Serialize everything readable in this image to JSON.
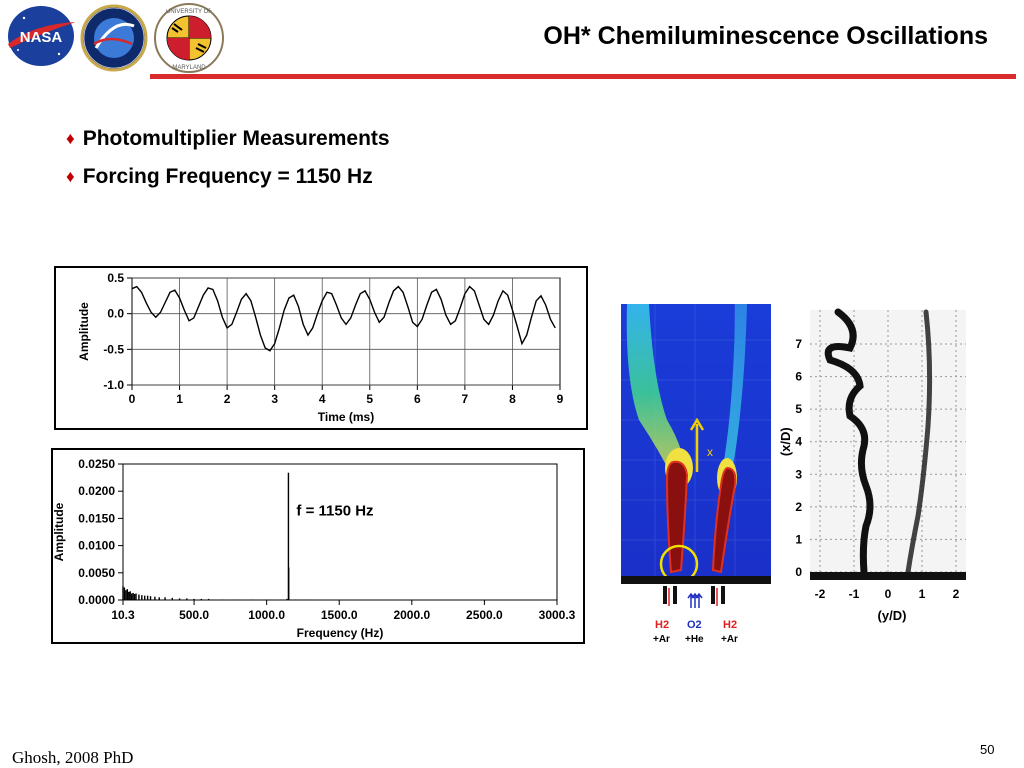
{
  "slide": {
    "title": "OH* Chemiluminescence Oscillations",
    "bullets": [
      "Photomultiplier Measurements",
      "Forcing Frequency = 1150 Hz"
    ],
    "footer": "Ghosh, 2008 PhD",
    "page_number": "50"
  },
  "logos": {
    "nasa": "NASA",
    "umd_top": "UNIVERSITY OF",
    "umd_bottom": "MARYLAND"
  },
  "chart_data": [
    {
      "type": "line",
      "title": "",
      "xlabel": "Time (ms)",
      "ylabel": "Amplitude",
      "xlim": [
        0,
        9
      ],
      "ylim": [
        -1.0,
        0.5
      ],
      "xticks": [
        "0",
        "1",
        "2",
        "3",
        "4",
        "5",
        "6",
        "7",
        "8",
        "9"
      ],
      "yticks": [
        "0.5",
        "0.0",
        "-0.5",
        "-1.0"
      ],
      "grid": true,
      "x": [
        0,
        0.1,
        0.2,
        0.3,
        0.4,
        0.5,
        0.6,
        0.7,
        0.8,
        0.9,
        1.0,
        1.1,
        1.2,
        1.3,
        1.4,
        1.5,
        1.6,
        1.7,
        1.8,
        1.9,
        2.0,
        2.1,
        2.2,
        2.3,
        2.4,
        2.5,
        2.6,
        2.7,
        2.8,
        2.9,
        3.0,
        3.1,
        3.2,
        3.3,
        3.4,
        3.5,
        3.6,
        3.7,
        3.8,
        3.9,
        4.0,
        4.1,
        4.2,
        4.3,
        4.4,
        4.5,
        4.6,
        4.7,
        4.8,
        4.9,
        5.0,
        5.1,
        5.2,
        5.3,
        5.4,
        5.5,
        5.6,
        5.7,
        5.8,
        5.9,
        6.0,
        6.1,
        6.2,
        6.3,
        6.4,
        6.5,
        6.6,
        6.7,
        6.8,
        6.9,
        7.0,
        7.1,
        7.2,
        7.3,
        7.4,
        7.5,
        7.6,
        7.7,
        7.8,
        7.9,
        8.0,
        8.1,
        8.2,
        8.3,
        8.4,
        8.5,
        8.6,
        8.7,
        8.8,
        8.9
      ],
      "series": [
        {
          "values": [
            0.35,
            0.38,
            0.3,
            0.15,
            0.02,
            -0.05,
            0.02,
            0.16,
            0.3,
            0.33,
            0.22,
            0.05,
            -0.1,
            -0.06,
            0.1,
            0.26,
            0.36,
            0.34,
            0.18,
            -0.05,
            -0.2,
            -0.15,
            0.02,
            0.2,
            0.28,
            0.18,
            -0.05,
            -0.3,
            -0.48,
            -0.52,
            -0.42,
            -0.2,
            0.05,
            0.22,
            0.26,
            0.1,
            -0.15,
            -0.3,
            -0.2,
            0.0,
            0.18,
            0.3,
            0.28,
            0.12,
            -0.06,
            -0.15,
            -0.06,
            0.12,
            0.28,
            0.32,
            0.2,
            0.02,
            -0.12,
            -0.05,
            0.15,
            0.32,
            0.38,
            0.3,
            0.1,
            -0.12,
            -0.18,
            -0.08,
            0.12,
            0.3,
            0.34,
            0.2,
            -0.02,
            -0.15,
            -0.1,
            0.08,
            0.28,
            0.38,
            0.32,
            0.12,
            -0.08,
            -0.15,
            -0.02,
            0.18,
            0.32,
            0.26,
            0.05,
            -0.18,
            -0.42,
            -0.3,
            -0.05,
            0.18,
            0.25,
            0.12,
            -0.08,
            -0.2
          ]
        }
      ]
    },
    {
      "type": "line",
      "title": "",
      "xlabel": "Frequency (Hz)",
      "ylabel": "Amplitude",
      "xlim": [
        10.3,
        3000.3
      ],
      "ylim": [
        0,
        0.025
      ],
      "xticks": [
        "10.3",
        "500.0",
        "1000.0",
        "1500.0",
        "2000.0",
        "2500.0",
        "3000.3"
      ],
      "yticks": [
        "0.0250",
        "0.0200",
        "0.0150",
        "0.0100",
        "0.0050",
        "0.0000"
      ],
      "grid": false,
      "annotation": "f = 1150 Hz",
      "x": [
        10.3,
        20,
        30,
        40,
        50,
        60,
        70,
        80,
        90,
        100,
        120,
        140,
        160,
        180,
        200,
        230,
        260,
        300,
        350,
        400,
        450,
        500,
        550,
        600,
        700,
        800,
        900,
        1000,
        1100,
        1140,
        1150,
        1152,
        1160,
        1200,
        1300,
        1500,
        1800,
        2100,
        2400,
        2700,
        3000.3
      ],
      "series": [
        {
          "values": [
            0.0025,
            0.0023,
            0.0018,
            0.002,
            0.0015,
            0.0016,
            0.0012,
            0.0013,
            0.0011,
            0.0012,
            0.001,
            0.0009,
            0.0008,
            0.0008,
            0.0007,
            0.0006,
            0.0005,
            0.0005,
            0.0004,
            0.0003,
            0.0003,
            0.0002,
            0.0002,
            0.0002,
            0.0001,
            0.0001,
            0.0001,
            0.0001,
            0.0001,
            0.0002,
            0.0234,
            0.006,
            0.0001,
            0.0001,
            0.0001,
            5e-05,
            5e-05,
            5e-05,
            5e-05,
            5e-05,
            5e-05
          ]
        }
      ]
    }
  ],
  "flame_image": {
    "arrow_label": "x",
    "inlets": [
      {
        "gas": "H2",
        "carrier": "+Ar",
        "color": "#e02020"
      },
      {
        "gas": "O2",
        "carrier": "+He",
        "color": "#2030c0"
      },
      {
        "gas": "H2",
        "carrier": "+Ar",
        "color": "#e02020"
      }
    ]
  },
  "shadowgraph": {
    "xlabel": "(y/D)",
    "ylabel": "(x/D)",
    "xticks": [
      "-2",
      "-1",
      "0",
      "1",
      "2"
    ],
    "yticks": [
      "0",
      "1",
      "2",
      "3",
      "4",
      "5",
      "6",
      "7"
    ]
  }
}
